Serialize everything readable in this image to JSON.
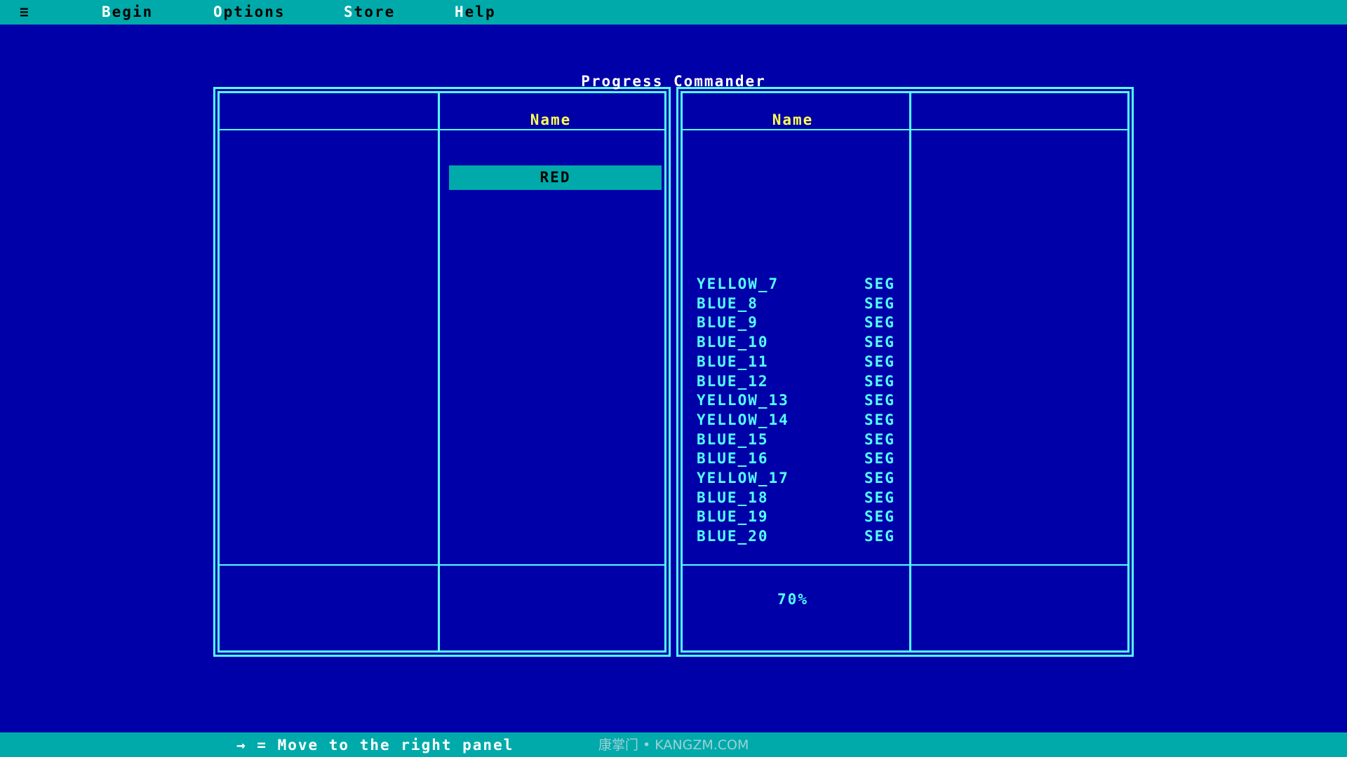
{
  "menubar": {
    "icon": "hamburger-menu-icon",
    "items": [
      {
        "hotkey": "B",
        "rest": "egin"
      },
      {
        "hotkey": "O",
        "rest": "ptions"
      },
      {
        "hotkey": "S",
        "rest": "tore"
      },
      {
        "hotkey": "H",
        "rest": "elp"
      }
    ]
  },
  "title": "Progress Commander",
  "left_panel": {
    "column_header": "Name",
    "selected_item": "RED"
  },
  "right_panel": {
    "column_header": "Name",
    "items": [
      {
        "name": "YELLOW_7",
        "type": "SEG"
      },
      {
        "name": "BLUE_8",
        "type": "SEG"
      },
      {
        "name": "BLUE_9",
        "type": "SEG"
      },
      {
        "name": "BLUE_10",
        "type": "SEG"
      },
      {
        "name": "BLUE_11",
        "type": "SEG"
      },
      {
        "name": "BLUE_12",
        "type": "SEG"
      },
      {
        "name": "YELLOW_13",
        "type": "SEG"
      },
      {
        "name": "YELLOW_14",
        "type": "SEG"
      },
      {
        "name": "BLUE_15",
        "type": "SEG"
      },
      {
        "name": "BLUE_16",
        "type": "SEG"
      },
      {
        "name": "YELLOW_17",
        "type": "SEG"
      },
      {
        "name": "BLUE_18",
        "type": "SEG"
      },
      {
        "name": "BLUE_19",
        "type": "SEG"
      },
      {
        "name": "BLUE_20",
        "type": "SEG"
      }
    ],
    "progress": "70%"
  },
  "statusbar": {
    "hint": "→ = Move to the right panel",
    "watermark": "康掌门 • KANGZM.COM"
  },
  "colors": {
    "background": "#0000a8",
    "bar": "#00aaaa",
    "border": "#55ffff",
    "header": "#ffff55"
  }
}
